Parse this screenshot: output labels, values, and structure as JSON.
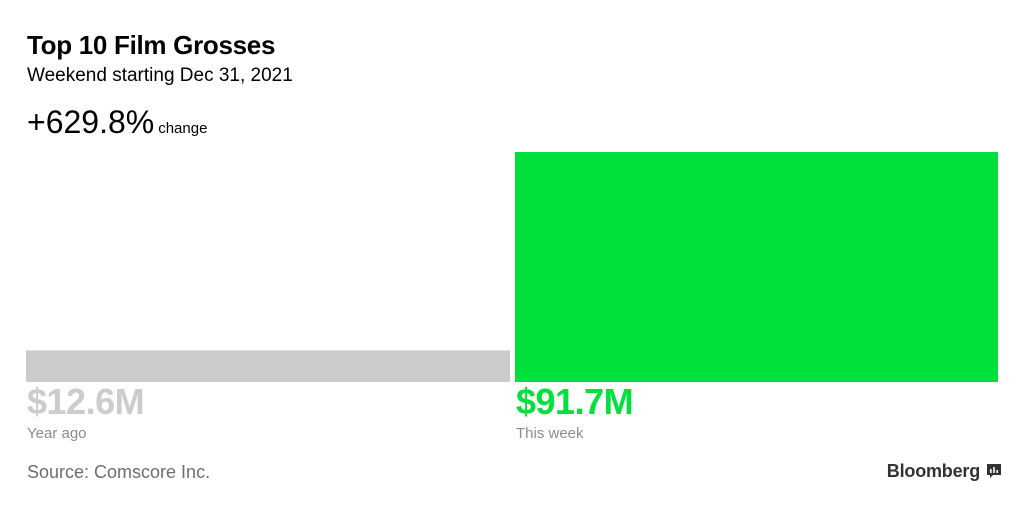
{
  "header": {
    "title": "Top 10 Film Grosses",
    "subtitle": "Weekend starting Dec 31, 2021",
    "change_value": "+629.8%",
    "change_label": "change"
  },
  "chart_data": {
    "type": "bar",
    "categories": [
      "Year ago",
      "This week"
    ],
    "values": [
      12.6,
      91.7
    ],
    "value_labels": [
      "$12.6M",
      "$91.7M"
    ],
    "colors": [
      "#cccccc",
      "#00e03c"
    ],
    "ylim": [
      0,
      91.7
    ],
    "grid": false,
    "legend": "none"
  },
  "footer": {
    "source": "Source: Comscore Inc.",
    "brand": "Bloomberg",
    "brand_icon": "bloomberg-chart-icon",
    "brand_color": "#333333"
  }
}
